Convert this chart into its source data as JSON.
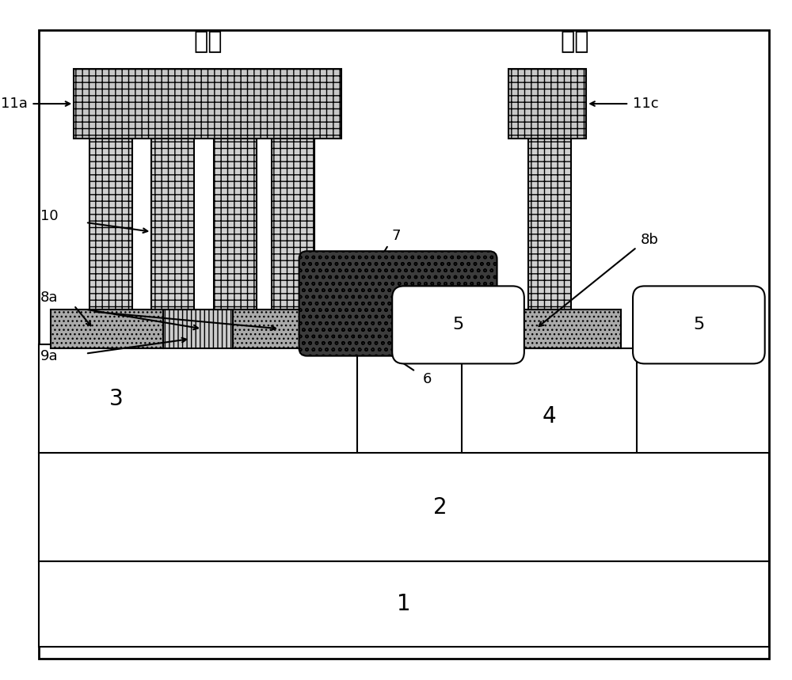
{
  "source_label": "源极",
  "drain_label": "漏极",
  "bg_color": "#ffffff",
  "lw": 1.5,
  "labels": {
    "11a": "11a",
    "11c": "11c",
    "10": "10",
    "8a": "8a",
    "8b": "8b",
    "9a": "9a",
    "7": "7",
    "6": "6",
    "5": "5",
    "4": "4",
    "3": "3",
    "2": "2",
    "1": "1"
  }
}
